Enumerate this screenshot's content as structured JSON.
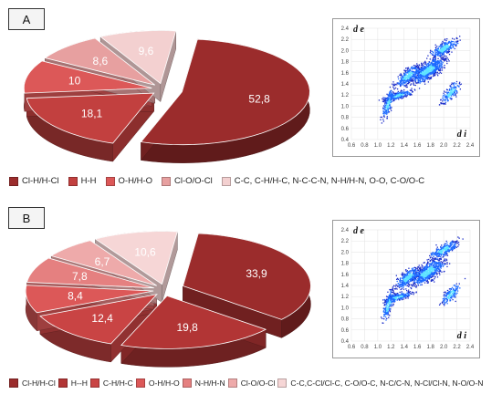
{
  "panels": [
    {
      "label": "A",
      "chart_data": {
        "type": "pie",
        "categories": [
          "Cl-H/H-Cl",
          "H-H",
          "O-H/H-O",
          "Cl-O/O-Cl",
          "C-C, C-H/H-C, N-C-C-N, N-H/H-N, O-O, C-O/O-C"
        ],
        "values": [
          52.8,
          18.1,
          10,
          8.6,
          9.6
        ],
        "value_labels": [
          "52,8",
          "18,1",
          "10",
          "8,6",
          "9,6"
        ],
        "colors": [
          "#9b2c2c",
          "#c2403f",
          "#dc5858",
          "#e7a0a0",
          "#f3d0d0"
        ],
        "legend_position": "bottom"
      },
      "legend": [
        {
          "label": "Cl-H/H-Cl",
          "color": "#9b2c2c"
        },
        {
          "label": "H-H",
          "color": "#c2403f"
        },
        {
          "label": "O-H/H-O",
          "color": "#dc5858"
        },
        {
          "label": "Cl-O/O-Cl",
          "color": "#e7a0a0"
        },
        {
          "label": "C-C, C-H/H-C, N-C-C-N, N-H/H-N, O-O, C-O/O-C",
          "color": "#f3d0d0"
        }
      ],
      "fingerprint": {
        "type": "scatter",
        "title": "",
        "xlabel": "d i",
        "ylabel": "d e",
        "xlim": [
          0.6,
          2.4
        ],
        "ylim": [
          0.4,
          2.4
        ],
        "x_ticks": [
          "0.6",
          "0.8",
          "1.0",
          "1.2",
          "1.4",
          "1.6",
          "1.8",
          "2.0",
          "2.2",
          "2.4"
        ],
        "y_ticks": [
          "0.4",
          "0.6",
          "0.8",
          "1.0",
          "1.2",
          "1.4",
          "1.6",
          "1.8",
          "2.0",
          "2.2",
          "2.4"
        ]
      }
    },
    {
      "label": "B",
      "chart_data": {
        "type": "pie",
        "categories": [
          "Cl-H/H-Cl",
          "H--H",
          "C-H/H-C",
          "O-H/H-O",
          "N-H/H-N",
          "Cl-O/O-Cl",
          "C-C,C-Cl/Cl-C, C-O/O-C, N-C/C-N, N-Cl/Cl-N, N-O/O-N"
        ],
        "values": [
          33.9,
          19.8,
          12.4,
          8.4,
          7.8,
          6.7,
          10.6
        ],
        "value_labels": [
          "33,9",
          "19,8",
          "12,4",
          "8,4",
          "7,8",
          "6,7",
          "10,6"
        ],
        "colors": [
          "#9b2c2c",
          "#b23535",
          "#c94444",
          "#dc5858",
          "#e58080",
          "#eeaaaa",
          "#f6d6d6"
        ],
        "legend_position": "bottom"
      },
      "legend": [
        {
          "label": "Cl-H/H-Cl",
          "color": "#9b2c2c"
        },
        {
          "label": "H--H",
          "color": "#b23535"
        },
        {
          "label": "C-H/H-C",
          "color": "#c94444"
        },
        {
          "label": "O-H/H-O",
          "color": "#dc5858"
        },
        {
          "label": "N-H/H-N",
          "color": "#e58080"
        },
        {
          "label": "Cl-O/O-Cl",
          "color": "#eeaaaa"
        },
        {
          "label": "C-C,C-Cl/Cl-C, C-O/O-C, N-C/C-N, N-Cl/Cl-N, N-O/O-N",
          "color": "#f6d6d6"
        }
      ],
      "fingerprint": {
        "type": "scatter",
        "title": "",
        "xlabel": "d i",
        "ylabel": "d e",
        "xlim": [
          0.6,
          2.4
        ],
        "ylim": [
          0.4,
          2.4
        ],
        "x_ticks": [
          "0.6",
          "0.8",
          "1.0",
          "1.2",
          "1.4",
          "1.6",
          "1.8",
          "2.0",
          "2.2",
          "2.4"
        ],
        "y_ticks": [
          "0.4",
          "0.6",
          "0.8",
          "1.0",
          "1.2",
          "1.4",
          "1.6",
          "1.8",
          "2.0",
          "2.2",
          "2.4"
        ]
      }
    }
  ]
}
